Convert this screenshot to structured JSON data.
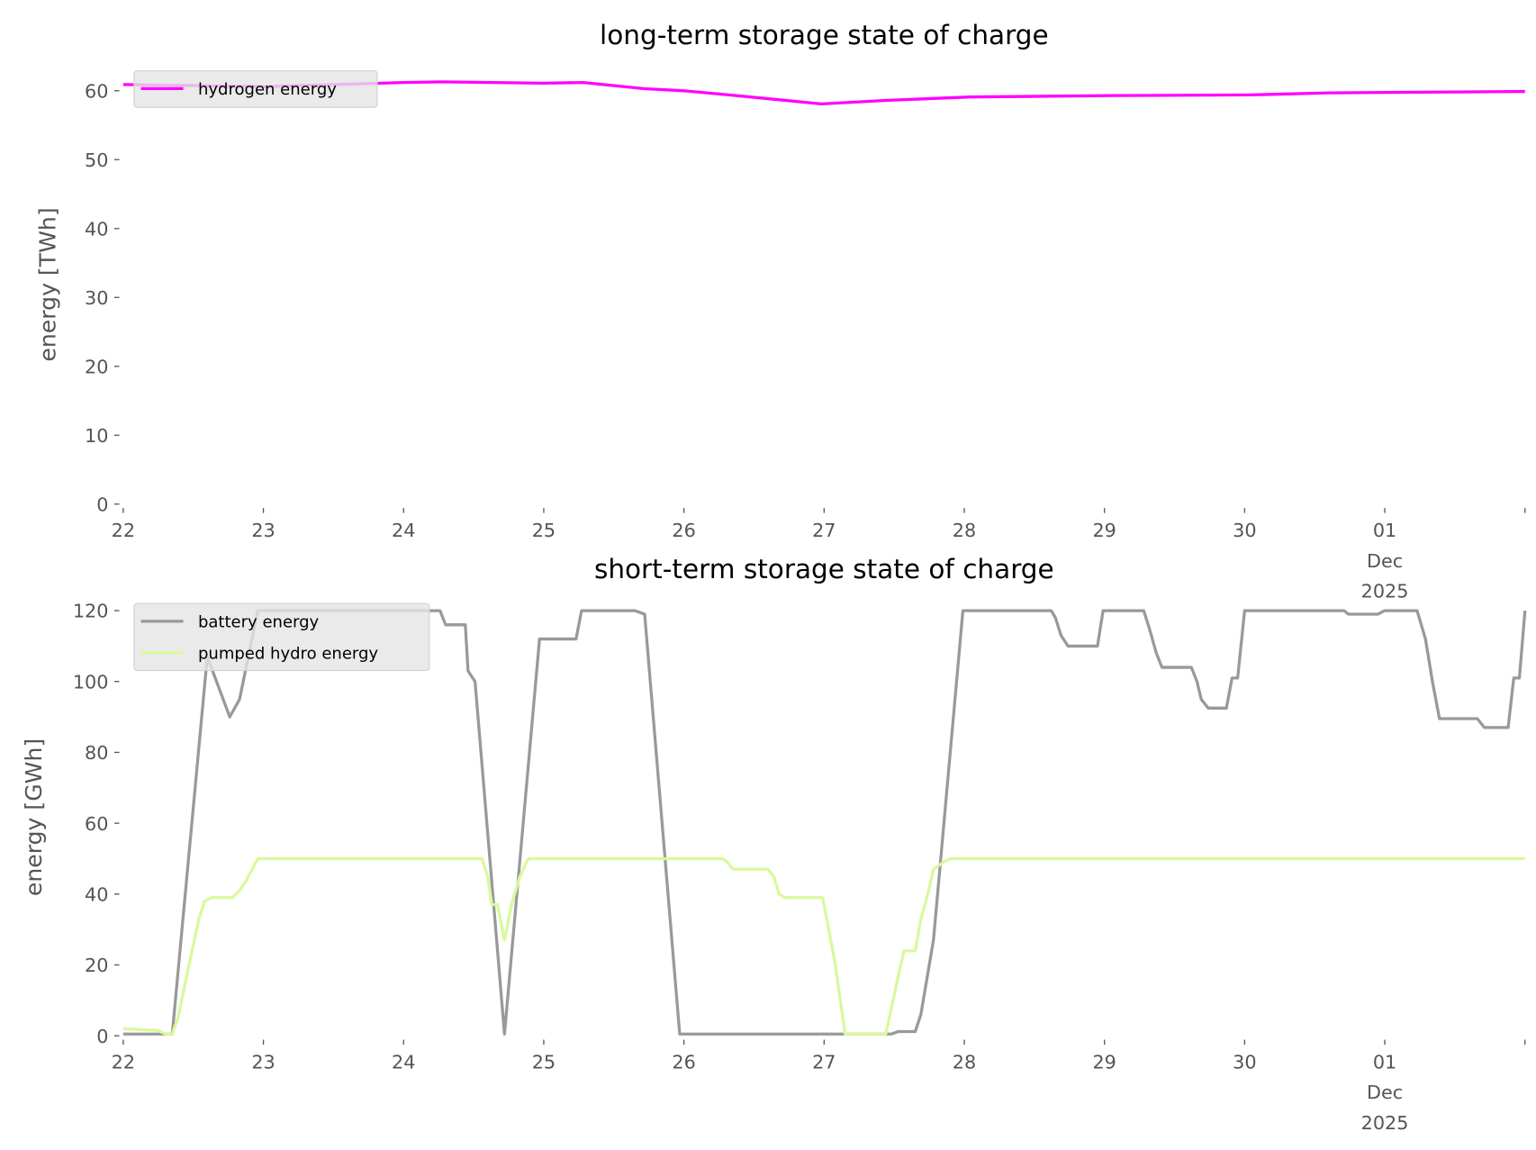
{
  "chart_data": [
    {
      "type": "line",
      "title": "long-term storage state of charge",
      "xlabel": "",
      "ylabel": "energy [TWh]",
      "xlim": [
        0,
        10
      ],
      "ylim": [
        0,
        63.6
      ],
      "x_unit": "days since 22 Nov 2025 00:00",
      "xtick_values": [
        0,
        1,
        2,
        3,
        4,
        5,
        6,
        7,
        8,
        9,
        10
      ],
      "xtick_labels": [
        "22",
        "23",
        "24",
        "25",
        "26",
        "27",
        "28",
        "29",
        "30",
        "01\nDec\n2025",
        ""
      ],
      "ytick_values": [
        0,
        10,
        20,
        30,
        40,
        50,
        60
      ],
      "ytick_labels": [
        "0",
        "10",
        "20",
        "30",
        "40",
        "50",
        "60"
      ],
      "grid": false,
      "legend_position": "top-left",
      "series": [
        {
          "name": "hydrogen energy",
          "color": "#ff00ff",
          "x": [
            0,
            1,
            2,
            2.27,
            3,
            3.28,
            3.72,
            4,
            4.32,
            4.98,
            5.44,
            6.04,
            7.06,
            8.04,
            8.6,
            10
          ],
          "y": [
            60.9,
            60.6,
            61.2,
            61.3,
            61.1,
            61.2,
            60.3,
            60.0,
            59.4,
            58.1,
            58.6,
            59.1,
            59.3,
            59.4,
            59.7,
            59.9
          ]
        }
      ]
    },
    {
      "type": "line",
      "title": "short-term storage state of charge",
      "xlabel": "",
      "ylabel": "energy [GWh]",
      "xlim": [
        0,
        10
      ],
      "ylim": [
        0,
        122
      ],
      "x_unit": "days since 22 Nov 2025 00:00",
      "xtick_values": [
        0,
        1,
        2,
        3,
        4,
        5,
        6,
        7,
        8,
        9,
        10
      ],
      "xtick_labels": [
        "22",
        "23",
        "24",
        "25",
        "26",
        "27",
        "28",
        "29",
        "30",
        "01\nDec\n2025",
        ""
      ],
      "ytick_values": [
        0,
        20,
        40,
        60,
        80,
        100,
        120
      ],
      "ytick_labels": [
        "0",
        "20",
        "40",
        "60",
        "80",
        "100",
        "120"
      ],
      "grid": false,
      "legend_position": "top-left",
      "series": [
        {
          "name": "battery energy",
          "color": "#999999",
          "x": [
            0,
            0.35,
            0.6,
            0.76,
            0.83,
            0.96,
            2.26,
            2.3,
            2.44,
            2.46,
            2.51,
            2.72,
            2.97,
            3.23,
            3.27,
            3.65,
            3.72,
            3.97,
            5.48,
            5.53,
            5.65,
            5.69,
            5.78,
            5.99,
            6.62,
            6.65,
            6.69,
            6.74,
            6.95,
            6.99,
            7.28,
            7.32,
            7.37,
            7.41,
            7.62,
            7.66,
            7.69,
            7.74,
            7.87,
            7.91,
            7.95,
            8.0,
            8.71,
            8.74,
            8.95,
            9.0,
            9.23,
            9.29,
            9.34,
            9.39,
            9.66,
            9.71,
            9.88,
            9.92,
            9.96,
            10.0
          ],
          "y": [
            0.5,
            0.5,
            107,
            90,
            95,
            120,
            120,
            116,
            116,
            103,
            100,
            0.5,
            112,
            112,
            120,
            120,
            119,
            0.5,
            0.5,
            1.2,
            1.2,
            6,
            27,
            120,
            120,
            118,
            113,
            110,
            110,
            120,
            120,
            115,
            108,
            104,
            104,
            100,
            95,
            92.5,
            92.5,
            101,
            101,
            120,
            120,
            119,
            119,
            120,
            120,
            112,
            100,
            89.5,
            89.5,
            87,
            87,
            101,
            101,
            120
          ]
        },
        {
          "name": "pumped hydro energy",
          "color": "#d9f99d",
          "x": [
            0,
            0.25,
            0.3,
            0.35,
            0.39,
            0.47,
            0.54,
            0.58,
            0.63,
            0.78,
            0.83,
            0.88,
            0.96,
            2.56,
            2.6,
            2.63,
            2.67,
            2.72,
            2.77,
            2.83,
            2.89,
            4.28,
            4.31,
            4.35,
            4.6,
            4.64,
            4.68,
            4.72,
            4.99,
            5.08,
            5.15,
            5.44,
            5.53,
            5.57,
            5.65,
            5.69,
            5.74,
            5.78,
            5.85,
            5.9,
            10
          ],
          "y": [
            2,
            1.5,
            0.5,
            0.5,
            5,
            20,
            33,
            38,
            39,
            39,
            41,
            44,
            50,
            50,
            45,
            37,
            37,
            27,
            37,
            45,
            50,
            50,
            49,
            47,
            47,
            45,
            40,
            39,
            39,
            20,
            0.5,
            0.5,
            17,
            24,
            24,
            33,
            40,
            47,
            49,
            50,
            50
          ]
        }
      ]
    }
  ]
}
